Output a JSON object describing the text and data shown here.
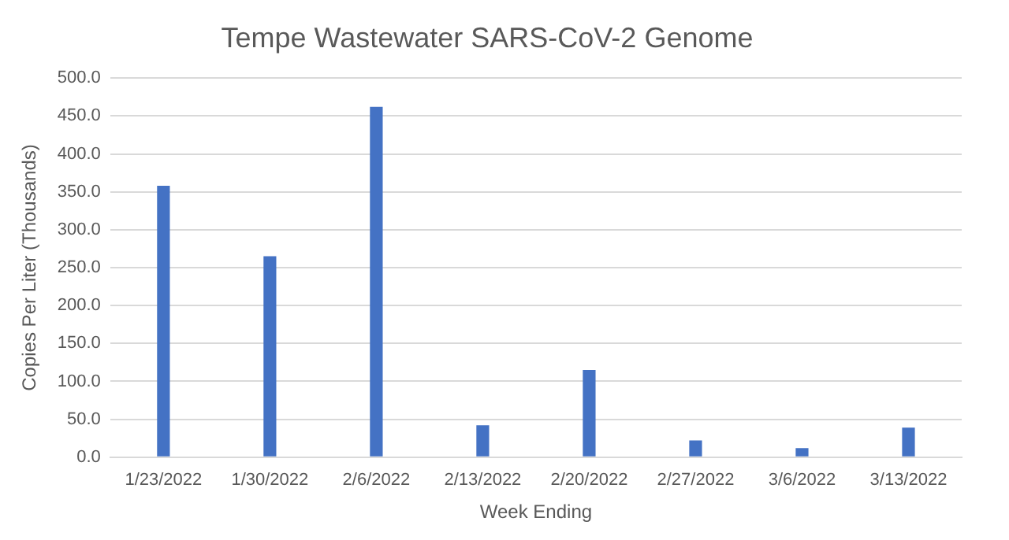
{
  "chart_data": {
    "type": "bar",
    "title": "Tempe Wastewater SARS-CoV-2 Genome",
    "xlabel": "Week Ending",
    "ylabel": "Copies Per Liter (Thousands)",
    "categories": [
      "1/23/2022",
      "1/30/2022",
      "2/6/2022",
      "2/13/2022",
      "2/20/2022",
      "2/27/2022",
      "3/6/2022",
      "3/13/2022"
    ],
    "series": [
      {
        "color": "#4472c4",
        "values": [
          358,
          265,
          462,
          42,
          115,
          22,
          12,
          39
        ]
      }
    ],
    "ylim": [
      0,
      500
    ],
    "yticks": [
      {
        "value": 0,
        "label": "0.0"
      },
      {
        "value": 50,
        "label": "50.0"
      },
      {
        "value": 100,
        "label": "100.0"
      },
      {
        "value": 150,
        "label": "150.0"
      },
      {
        "value": 200,
        "label": "200.0"
      },
      {
        "value": 250,
        "label": "250.0"
      },
      {
        "value": 300,
        "label": "300.0"
      },
      {
        "value": 350,
        "label": "350.0"
      },
      {
        "value": 400,
        "label": "400.0"
      },
      {
        "value": 450,
        "label": "450.0"
      },
      {
        "value": 500,
        "label": "500.0"
      }
    ],
    "grid": "y",
    "legend": false
  }
}
